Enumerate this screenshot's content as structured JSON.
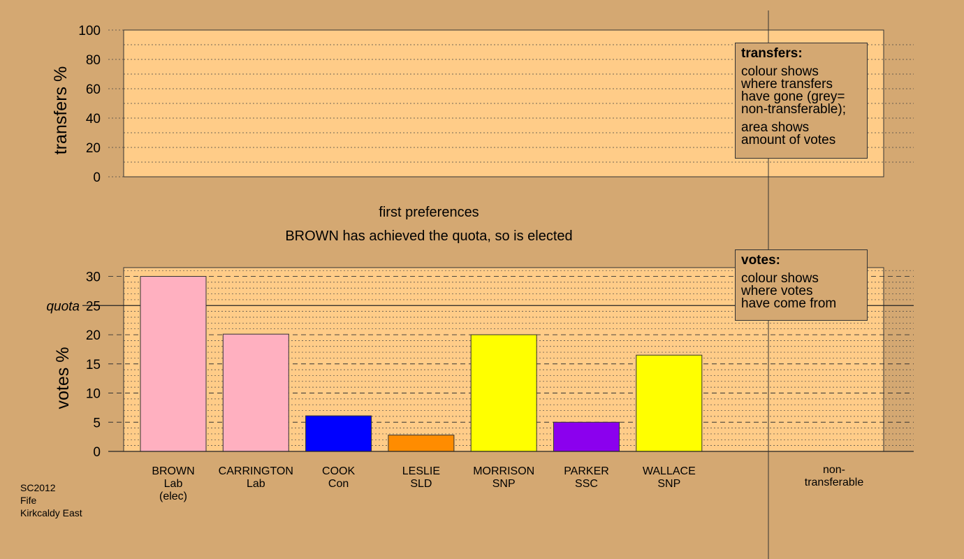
{
  "chart_data": [
    {
      "type": "bar",
      "ylabel": "transfers %",
      "ylim": [
        0,
        100
      ],
      "yticks": [
        0,
        20,
        40,
        60,
        80,
        100
      ],
      "series": []
    },
    {
      "type": "bar",
      "ylabel": "votes %",
      "ylim": [
        0,
        31.5
      ],
      "yticks": [
        0,
        5,
        10,
        15,
        20,
        25,
        30
      ],
      "quota_label": "quota",
      "quota": 25,
      "categories": [
        "BROWN",
        "CARRINGTON",
        "COOK",
        "LESLIE",
        "MORRISON",
        "PARKER",
        "WALLACE"
      ],
      "candidates": [
        {
          "name": "BROWN",
          "party": "Lab",
          "note": "(elec)",
          "value": 30,
          "color": "#ffb0c0"
        },
        {
          "name": "CARRINGTON",
          "party": "Lab",
          "note": "",
          "value": 20.1,
          "color": "#ffb0c0"
        },
        {
          "name": "COOK",
          "party": "Con",
          "note": "",
          "value": 6.1,
          "color": "#0000ff"
        },
        {
          "name": "LESLIE",
          "party": "SLD",
          "note": "",
          "value": 2.8,
          "color": "#ff8c00"
        },
        {
          "name": "MORRISON",
          "party": "SNP",
          "note": "",
          "value": 20,
          "color": "#ffff00"
        },
        {
          "name": "PARKER",
          "party": "SSC",
          "note": "",
          "value": 5,
          "color": "#8b00ee"
        },
        {
          "name": "WALLACE",
          "party": "SNP",
          "note": "",
          "value": 16.5,
          "color": "#ffff00"
        }
      ],
      "non_transferable": {
        "line1": "non-",
        "line2": "transferable",
        "value": 0
      }
    }
  ],
  "stage_title": "first preferences",
  "stage_message": "BROWN has achieved the quota, so is elected",
  "transfers_legend": {
    "title": "transfers:",
    "para1": [
      "colour shows",
      "where transfers",
      "have gone (grey=",
      "non-transferable);"
    ],
    "para2": [
      "area shows",
      "amount of votes"
    ]
  },
  "votes_legend": {
    "title": "votes:",
    "para1": [
      "colour shows",
      "where votes",
      "have come from"
    ]
  },
  "footer": [
    "SC2012",
    "Fife",
    "Kirkcaldy East"
  ],
  "colors": {
    "background": "#d4a872",
    "plot": "#ffcc88"
  }
}
